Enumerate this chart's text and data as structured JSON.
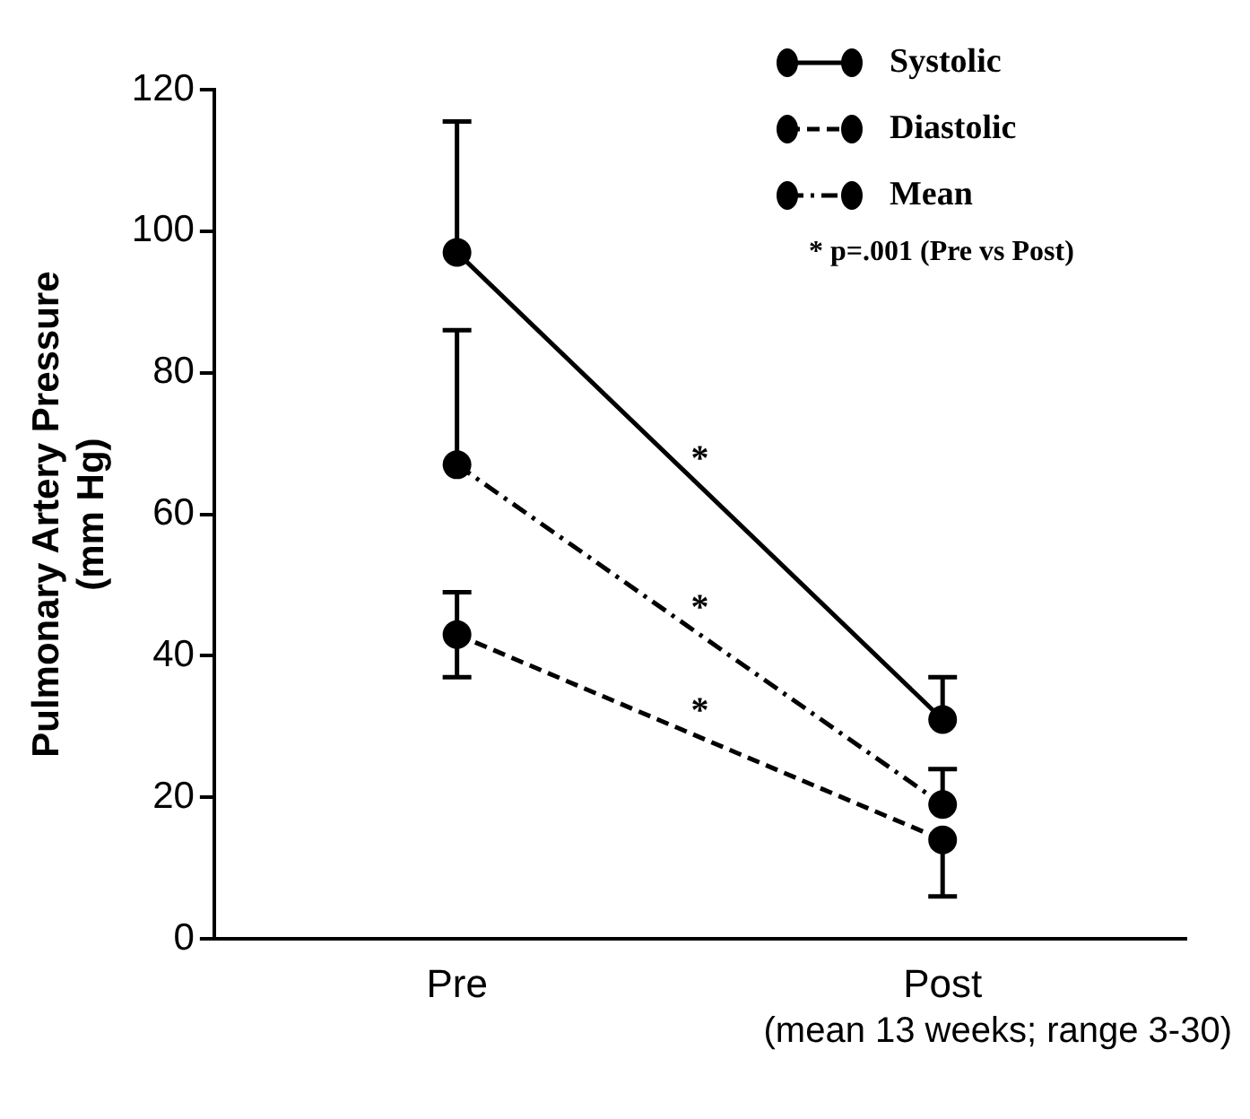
{
  "chart_data": {
    "type": "line",
    "ylabel": "Pulmonary Artery Pressure\n(mm Hg)",
    "xlabel": "(mean 13 weeks; range 3-30)",
    "categories": [
      "Pre",
      "Post"
    ],
    "series": [
      {
        "name": "Systolic",
        "color": "#000000",
        "line_style": "solid",
        "values": [
          97,
          31
        ],
        "errors": [
          [
            97,
            115.5
          ],
          [
            31,
            37
          ]
        ]
      },
      {
        "name": "Diastolic",
        "color": "#000000",
        "line_style": "dashed",
        "values": [
          43,
          14
        ],
        "errors": [
          [
            37,
            49
          ],
          [
            6,
            14
          ]
        ]
      },
      {
        "name": "Mean",
        "color": "#000000",
        "line_style": "dotted",
        "values": [
          67,
          19
        ],
        "errors": [
          [
            67,
            86
          ],
          [
            19,
            24
          ]
        ]
      }
    ],
    "ylim": [
      0,
      120
    ],
    "yticks": [
      0,
      20,
      40,
      60,
      80,
      100,
      120
    ],
    "grid": false,
    "legend": "top right",
    "marker": "circle",
    "annotations": [
      "*",
      "*",
      "*",
      "* p=.001 (Pre vs Post)"
    ]
  }
}
